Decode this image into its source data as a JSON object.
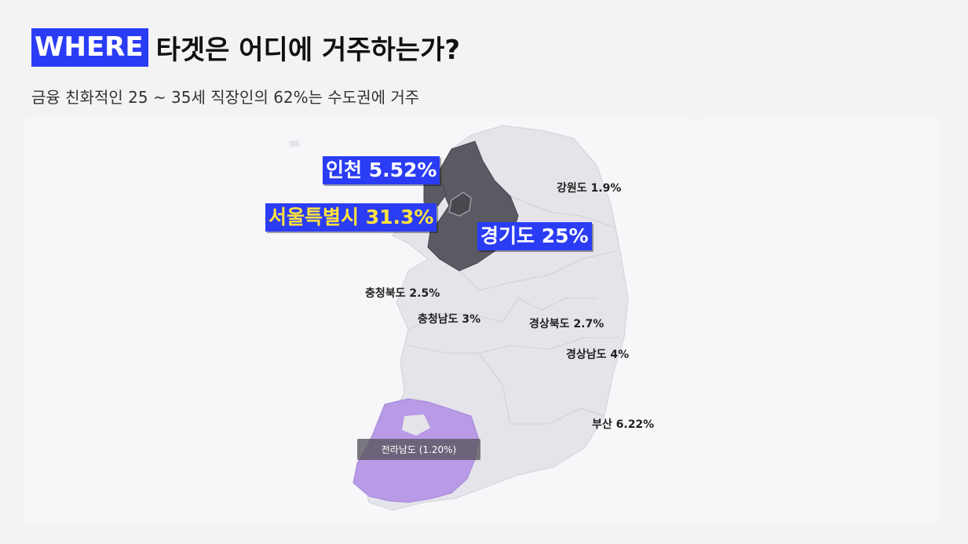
{
  "header": {
    "highlight": "WHERE",
    "title": "타겟은 어디에 거주하는가?",
    "subtitle": "금융 친화적인 25 ~ 35세 직장인의 62%는 수도권에 거주"
  },
  "map": {
    "colors": {
      "base": "#e4e4ea",
      "capital": "#5a5a62",
      "seoul": "#48484f",
      "jeonnam": "#b89ae6",
      "highlight": "#2b3cf5",
      "seoul_text": "#ffe23d"
    },
    "big_labels": {
      "incheon": "인천 5.52%",
      "seoul": "서울특별시 31.3%",
      "gyeonggi": "경기도 25%"
    },
    "labels": {
      "gangwon": "강원도 1.9%",
      "chungbuk": "충청북도 2.5%",
      "chungnam": "충청남도 3%",
      "gyeongbuk": "경상북도 2.7%",
      "gyeongnam": "경상남도 4%",
      "busan": "부산 6.22%"
    },
    "tooltip": "전라남도 (1.20%)"
  }
}
